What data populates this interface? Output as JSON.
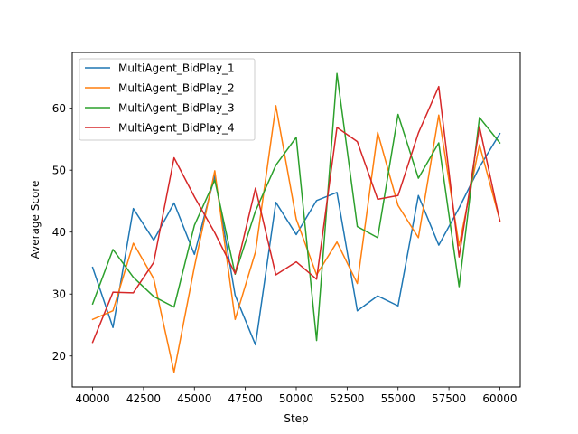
{
  "chart_data": {
    "type": "line",
    "title": "",
    "xlabel": "Step",
    "ylabel": "Average Score",
    "xlim": [
      39000,
      61000
    ],
    "ylim": [
      15,
      69
    ],
    "xticks": [
      40000,
      42500,
      45000,
      47500,
      50000,
      52500,
      55000,
      57500,
      60000
    ],
    "xtick_labels": [
      "40000",
      "42500",
      "45000",
      "47500",
      "50000",
      "52500",
      "55000",
      "57500",
      "60000"
    ],
    "yticks": [
      20,
      30,
      40,
      50,
      60
    ],
    "ytick_labels": [
      "20",
      "30",
      "40",
      "50",
      "60"
    ],
    "grid": false,
    "legend_position": "upper-left",
    "x": [
      40000,
      41000,
      42000,
      43000,
      44000,
      45000,
      46000,
      47000,
      48000,
      49000,
      50000,
      51000,
      52000,
      53000,
      54000,
      55000,
      56000,
      57000,
      58000,
      59000,
      60000
    ],
    "series": [
      {
        "name": "MultiAgent_BidPlay_1",
        "color": "#1f77b4",
        "values": [
          34.3,
          24.6,
          43.8,
          38.7,
          44.7,
          36.4,
          49.1,
          29.8,
          21.8,
          44.8,
          39.6,
          45.1,
          46.4,
          27.3,
          29.7,
          28.1,
          45.9,
          37.9,
          43.9,
          50.5,
          55.9
        ]
      },
      {
        "name": "MultiAgent_BidPlay_2",
        "color": "#ff7f0e",
        "values": [
          25.9,
          27.3,
          38.2,
          32.5,
          17.4,
          34.4,
          49.9,
          25.9,
          36.8,
          60.4,
          42.1,
          33.1,
          38.4,
          31.7,
          56.1,
          44.3,
          39.1,
          58.9,
          37.8,
          54.1,
          41.9
        ]
      },
      {
        "name": "MultiAgent_BidPlay_3",
        "color": "#2ca02c",
        "values": [
          28.4,
          37.2,
          32.7,
          29.6,
          27.9,
          41.1,
          48.4,
          33.2,
          43.4,
          50.8,
          55.3,
          22.5,
          65.6,
          40.9,
          39.1,
          59.0,
          48.7,
          54.4,
          31.2,
          58.5,
          54.4
        ]
      },
      {
        "name": "MultiAgent_BidPlay_4",
        "color": "#d62728",
        "values": [
          22.2,
          30.3,
          30.2,
          35.1,
          52.0,
          45.7,
          39.9,
          33.3,
          47.1,
          33.1,
          35.2,
          32.4,
          56.9,
          54.6,
          45.3,
          45.9,
          56.0,
          63.5,
          36.0,
          57.0,
          41.8
        ]
      }
    ]
  }
}
